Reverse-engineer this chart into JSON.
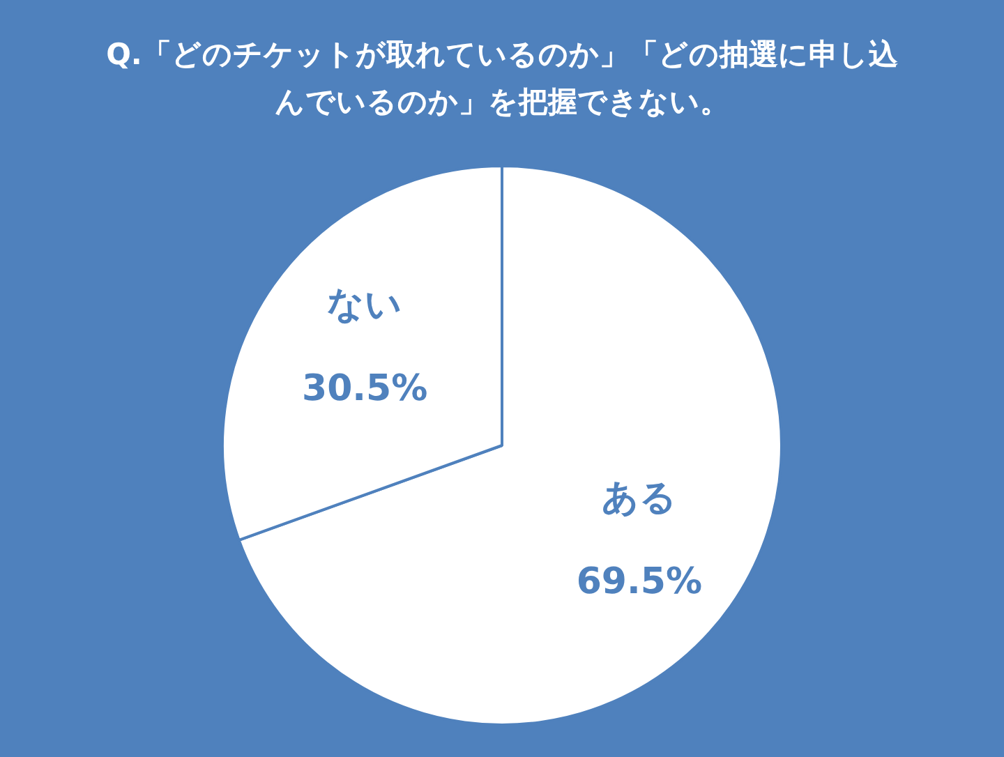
{
  "chart_data": {
    "type": "pie",
    "title": "Q.「どのチケットが取れているのか」「どの抽選に申し込んでいるのか」を把握できない。",
    "categories": [
      "ある",
      "ない"
    ],
    "values": [
      69.5,
      30.5
    ],
    "value_labels": [
      "69.5%",
      "30.5%"
    ],
    "colors": [
      "#ffffff",
      "#ffffff"
    ],
    "legend": false
  }
}
